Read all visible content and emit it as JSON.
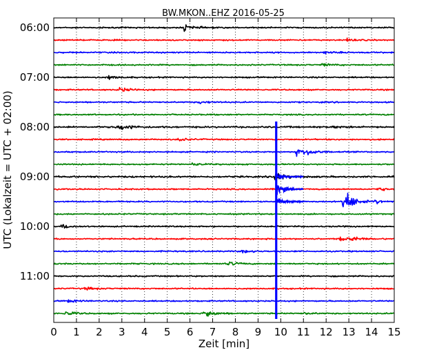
{
  "chart_data": {
    "type": "line",
    "title": "BW.MKON..EHZ 2016-05-25",
    "xlabel": "Zeit  [min]",
    "ylabel": "UTC (Lokalzeit = UTC + 02:00)",
    "xlim": [
      0,
      15
    ],
    "x_ticks": [
      "0",
      "1",
      "2",
      "3",
      "4",
      "5",
      "6",
      "7",
      "8",
      "9",
      "10",
      "11",
      "12",
      "13",
      "14",
      "15"
    ],
    "y_tick_labels": [
      "06:00",
      "07:00",
      "08:00",
      "09:00",
      "10:00",
      "11:00"
    ],
    "grid": "vertical-dotted",
    "trace_interval_minutes": 15,
    "trace_colors": [
      "#000000",
      "#ff0000",
      "#0000ff",
      "#008000"
    ],
    "series": [
      {
        "start": "06:00",
        "color": "#000000",
        "events": [
          {
            "t": 5.75,
            "a": 6
          }
        ]
      },
      {
        "start": "06:15",
        "color": "#ff0000",
        "events": [
          {
            "t": 12.8,
            "a": 3
          }
        ]
      },
      {
        "start": "06:30",
        "color": "#0000ff",
        "events": [
          {
            "t": 11.9,
            "a": 2
          }
        ]
      },
      {
        "start": "06:45",
        "color": "#008000",
        "events": [
          {
            "t": 11.8,
            "a": 3
          }
        ]
      },
      {
        "start": "07:00",
        "color": "#000000",
        "events": [
          {
            "t": 2.4,
            "a": 4
          }
        ]
      },
      {
        "start": "07:15",
        "color": "#ff0000",
        "events": [
          {
            "t": 2.9,
            "a": 5
          }
        ]
      },
      {
        "start": "07:30",
        "color": "#0000ff",
        "events": [
          {
            "t": 6.4,
            "a": 3
          }
        ]
      },
      {
        "start": "07:45",
        "color": "#008000",
        "events": []
      },
      {
        "start": "08:00",
        "color": "#000000",
        "events": [
          {
            "t": 2.7,
            "a": 4
          },
          {
            "t": 3.0,
            "a": 5
          },
          {
            "t": 12.3,
            "a": 2
          }
        ]
      },
      {
        "start": "08:15",
        "color": "#ff0000",
        "events": [
          {
            "t": 5.5,
            "a": 4
          }
        ]
      },
      {
        "start": "08:30",
        "color": "#0000ff",
        "events": [
          {
            "t": 10.7,
            "a": 7
          },
          {
            "t": 11.2,
            "a": 5
          }
        ]
      },
      {
        "start": "08:45",
        "color": "#008000",
        "events": [
          {
            "t": 6.1,
            "a": 2
          }
        ]
      },
      {
        "start": "09:00",
        "color": "#000000",
        "events": [
          {
            "t": 9.75,
            "a": 12
          }
        ]
      },
      {
        "start": "09:15",
        "color": "#ff0000",
        "events": [
          {
            "t": 14.2,
            "a": 4
          }
        ]
      },
      {
        "start": "09:30",
        "color": "#0000ff",
        "events": [
          {
            "t": 12.75,
            "a": 28
          },
          {
            "t": 14.1,
            "a": 4
          }
        ]
      },
      {
        "start": "09:45",
        "color": "#008000",
        "events": []
      },
      {
        "start": "10:00",
        "color": "#000000",
        "events": [
          {
            "t": 0.35,
            "a": 5
          }
        ]
      },
      {
        "start": "10:15",
        "color": "#ff0000",
        "events": [
          {
            "t": 12.6,
            "a": 4
          },
          {
            "t": 13.1,
            "a": 4
          }
        ]
      },
      {
        "start": "10:30",
        "color": "#0000ff",
        "events": [
          {
            "t": 8.3,
            "a": 3
          }
        ]
      },
      {
        "start": "10:45",
        "color": "#008000",
        "events": [
          {
            "t": 7.7,
            "a": 4
          }
        ]
      },
      {
        "start": "11:00",
        "color": "#000000",
        "events": []
      },
      {
        "start": "11:15",
        "color": "#ff0000",
        "events": [
          {
            "t": 1.4,
            "a": 3
          }
        ]
      },
      {
        "start": "11:30",
        "color": "#0000ff",
        "events": [
          {
            "t": 0.6,
            "a": 3
          }
        ]
      },
      {
        "start": "11:45",
        "color": "#008000",
        "events": [
          {
            "t": 0.5,
            "a": 5
          },
          {
            "t": 6.6,
            "a": 10
          },
          {
            "t": 11.0,
            "a": 2
          }
        ]
      }
    ],
    "major_event": {
      "t": 9.8,
      "from": "08:00",
      "to": "11:45",
      "color": "#0000ff"
    }
  }
}
